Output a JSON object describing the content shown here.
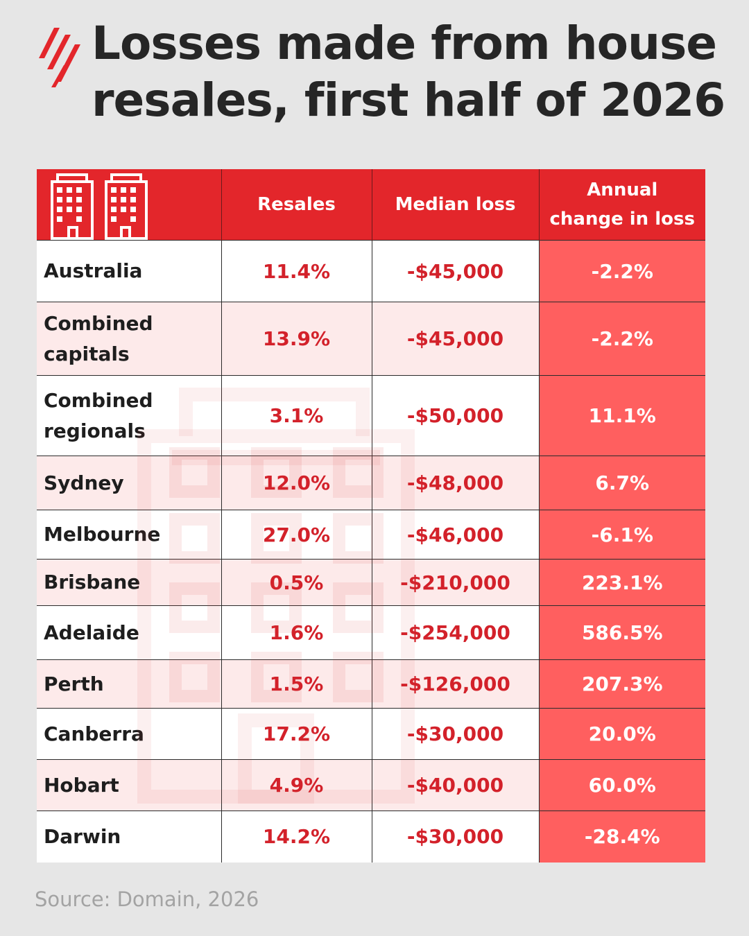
{
  "title": "Losses made from house resales, first half of 2026",
  "source": "Source: Domain, 2026",
  "colors": {
    "brand_red": "#e3262b",
    "value_red": "#d3212a",
    "change_column_bg": "#ff5f5f",
    "row_tint": "#fdeaea",
    "title_text": "#262626"
  },
  "icons": {
    "logo": "sbs-logo-icon",
    "header": "apartment-buildings-icon"
  },
  "chart_data": {
    "type": "table",
    "title": "Losses made from house resales, first half of 2026",
    "columns": [
      "",
      "Resales",
      "Median loss",
      "Annual change in loss"
    ],
    "rows": [
      {
        "region": "Australia",
        "resales": "11.4%",
        "median_loss": "-$45,000",
        "annual_change": "-2.2%"
      },
      {
        "region": "Combined capitals",
        "resales": "13.9%",
        "median_loss": "-$45,000",
        "annual_change": "-2.2%"
      },
      {
        "region": "Combined regionals",
        "resales": "3.1%",
        "median_loss": "-$50,000",
        "annual_change": "11.1%"
      },
      {
        "region": "Sydney",
        "resales": "12.0%",
        "median_loss": "-$48,000",
        "annual_change": "6.7%"
      },
      {
        "region": "Melbourne",
        "resales": "27.0%",
        "median_loss": "-$46,000",
        "annual_change": "-6.1%"
      },
      {
        "region": "Brisbane",
        "resales": "0.5%",
        "median_loss": "-$210,000",
        "annual_change": "223.1%"
      },
      {
        "region": "Adelaide",
        "resales": "1.6%",
        "median_loss": "-$254,000",
        "annual_change": "586.5%"
      },
      {
        "region": "Perth",
        "resales": "1.5%",
        "median_loss": "-$126,000",
        "annual_change": "207.3%"
      },
      {
        "region": "Canberra",
        "resales": "17.2%",
        "median_loss": "-$30,000",
        "annual_change": "20.0%"
      },
      {
        "region": "Hobart",
        "resales": "4.9%",
        "median_loss": "-$40,000",
        "annual_change": "60.0%"
      },
      {
        "region": "Darwin",
        "resales": "14.2%",
        "median_loss": "-$30,000",
        "annual_change": "-28.4%"
      }
    ],
    "source": "Source: Domain, 2026"
  }
}
